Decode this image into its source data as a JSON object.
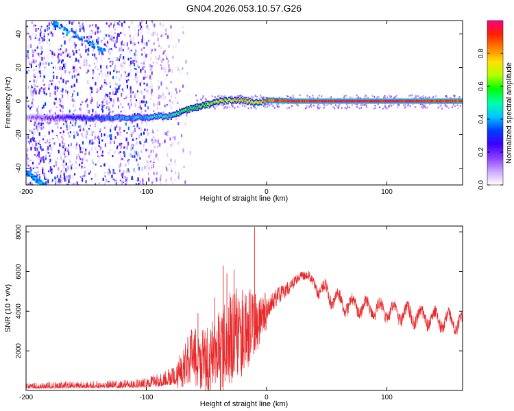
{
  "figure_title": "GN04.2026.053.10.57.G26",
  "chart_data": [
    {
      "type": "heatmap",
      "title": "GN04.2026.053.10.57.G26",
      "xlabel": "Height of straight line (km)",
      "ylabel": "Frequency (Hz)",
      "xlim": [
        -200,
        163
      ],
      "ylim": [
        -50,
        48
      ],
      "x_ticks": [
        -200,
        -100,
        0,
        100
      ],
      "x_tick_labels": [
        "-200",
        "-100",
        "0",
        "100"
      ],
      "y_ticks": [
        -40,
        -20,
        0,
        20,
        40
      ],
      "y_tick_labels": [
        "-40",
        "-20",
        "0",
        "20",
        "40"
      ],
      "colorbar": {
        "label": "Normalized spectral amplitude",
        "range": [
          0,
          1
        ],
        "ticks": [
          0.0,
          0.2,
          0.4,
          0.6,
          0.8
        ],
        "tick_labels": [
          "0.0",
          "0.2",
          "0.4",
          "0.6",
          "0.8"
        ],
        "colors": [
          "#ffffff",
          "#c9a6ff",
          "#8a3cff",
          "#3a00ff",
          "#0040ff",
          "#00c8ff",
          "#00ffaa",
          "#00ff00",
          "#b4ff00",
          "#ffe000",
          "#ff8000",
          "#ff2000",
          "#ff0080"
        ]
      },
      "ridge": [
        {
          "x": -200,
          "y": -10,
          "a": 0.12
        },
        {
          "x": -140,
          "y": -10,
          "a": 0.35
        },
        {
          "x": -100,
          "y": -10,
          "a": 0.42
        },
        {
          "x": -95,
          "y": -9,
          "a": 0.45
        },
        {
          "x": -80,
          "y": -9,
          "a": 0.5
        },
        {
          "x": -70,
          "y": -6,
          "a": 0.55
        },
        {
          "x": -60,
          "y": -4,
          "a": 0.55
        },
        {
          "x": -50,
          "y": -2,
          "a": 0.6
        },
        {
          "x": -40,
          "y": 0,
          "a": 0.65
        },
        {
          "x": -30,
          "y": 0.5,
          "a": 0.7
        },
        {
          "x": -20,
          "y": 0.5,
          "a": 0.78
        },
        {
          "x": -10,
          "y": -1,
          "a": 0.7
        },
        {
          "x": 0,
          "y": 0.5,
          "a": 0.85
        },
        {
          "x": 20,
          "y": 0,
          "a": 0.92
        },
        {
          "x": 60,
          "y": 0,
          "a": 0.95
        },
        {
          "x": 100,
          "y": 0,
          "a": 0.95
        },
        {
          "x": 163,
          "y": 0,
          "a": 0.9
        }
      ],
      "streaks": [
        {
          "x0": -180,
          "y0": 48,
          "x1": -135,
          "y1": 30,
          "a": 0.3
        },
        {
          "x0": -200,
          "y0": -42,
          "x1": -185,
          "y1": -50,
          "a": 0.3
        }
      ]
    },
    {
      "type": "line",
      "xlabel": "Height of straight line (km)",
      "ylabel": "SNR (10 * v/v)",
      "xlim": [
        -200,
        163
      ],
      "ylim": [
        0,
        8300
      ],
      "x_ticks": [
        -200,
        -100,
        0,
        100
      ],
      "x_tick_labels": [
        "-200",
        "-100",
        "0",
        "100"
      ],
      "y_ticks": [
        2000,
        4000,
        6000,
        8000
      ],
      "y_tick_labels": [
        "2000",
        "4000",
        "6000",
        "8000"
      ],
      "color": "#e8282a",
      "envelope": {
        "x": [
          -200,
          -150,
          -110,
          -100,
          -90,
          -80,
          -70,
          -65,
          -60,
          -55,
          -50,
          -45,
          -40,
          -35,
          -30,
          -25,
          -20,
          -15,
          -10,
          -5,
          0,
          5,
          10,
          15,
          20,
          25,
          30,
          35,
          40,
          50,
          60,
          70,
          80,
          90,
          100,
          110,
          120,
          130,
          140,
          150,
          163
        ],
        "base": [
          250,
          300,
          350,
          400,
          500,
          700,
          1000,
          1600,
          1700,
          1500,
          1400,
          1700,
          1900,
          2100,
          2500,
          2800,
          2900,
          3200,
          3400,
          3700,
          4100,
          4500,
          4800,
          5000,
          5300,
          5600,
          5800,
          5800,
          5400,
          4900,
          4500,
          4300,
          4200,
          4100,
          4000,
          3900,
          3800,
          3700,
          3600,
          3500,
          3400
        ],
        "spread": [
          250,
          300,
          350,
          400,
          550,
          700,
          900,
          1300,
          1500,
          1600,
          1700,
          1900,
          2100,
          2300,
          2500,
          2400,
          2200,
          2000,
          1700,
          1300,
          1000,
          900,
          800,
          700,
          600,
          500,
          450,
          450,
          500,
          600,
          600,
          600,
          600,
          600,
          600,
          600,
          600,
          600,
          600,
          600,
          600
        ]
      },
      "spikes": [
        {
          "x": -10,
          "y": 8250
        },
        {
          "x": -36,
          "y": 6300
        },
        {
          "x": -27,
          "y": 6100
        },
        {
          "x": -33,
          "y": 5900
        },
        {
          "x": -57,
          "y": 3900
        },
        {
          "x": -20,
          "y": 5000
        },
        {
          "x": -43,
          "y": 4700
        }
      ]
    }
  ]
}
